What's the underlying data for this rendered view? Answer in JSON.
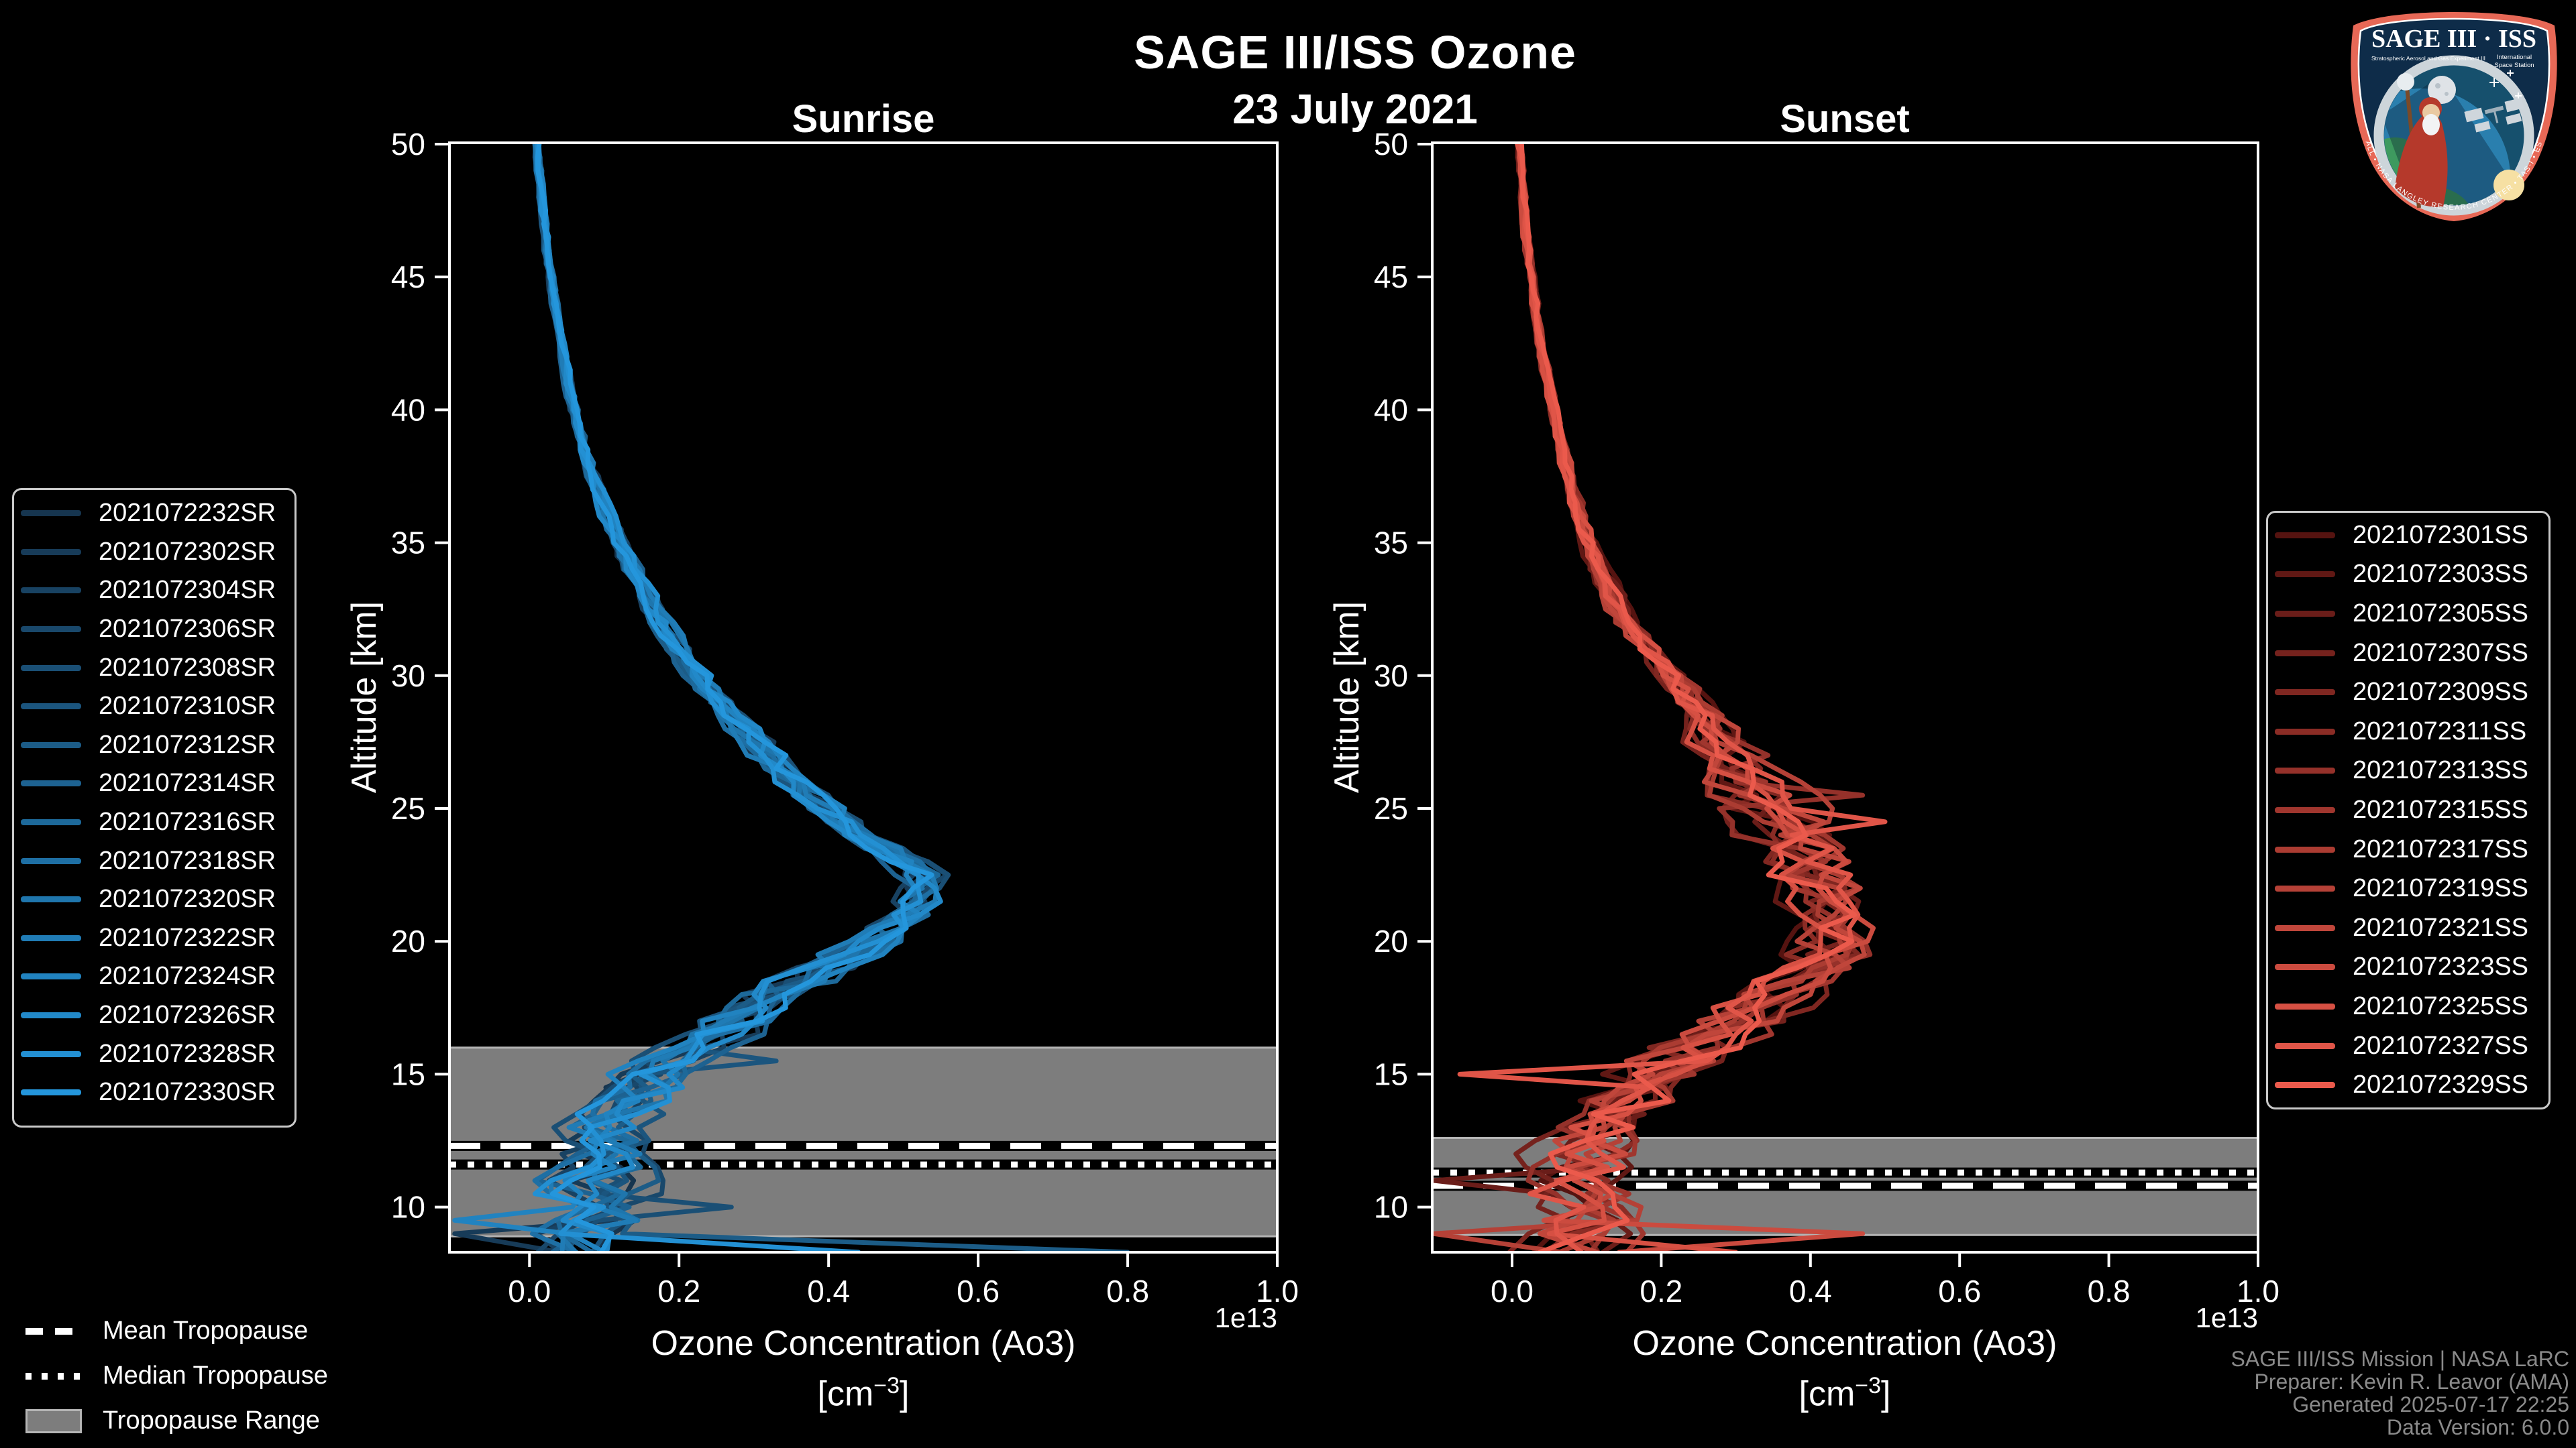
{
  "title": {
    "line1": "SAGE III/ISS Ozone",
    "line2": "23 July 2021"
  },
  "colors": {
    "background": "#000000",
    "text": "#ffffff",
    "muted_text": "#8a8a8a",
    "spine": "#ffffff",
    "band": "#7d7d7d",
    "band_edge": "#b5b5b5",
    "logo_border": "#e76856",
    "logo_field": "#0e2c49"
  },
  "chart_data": [
    {
      "type": "line",
      "id": "sunrise",
      "panel_title": "Sunrise",
      "ylabel": "Altitude [km]",
      "xlabel": "Ozone Concentration (Ao3)",
      "xlabel_unit_pre": "[cm",
      "xlabel_unit_sup": "−3",
      "xlabel_unit_post": "]",
      "offset_text": "1e13",
      "xlim": [
        -0.107,
        1.0
      ],
      "ylim": [
        8.3,
        50.05
      ],
      "xticks": [
        "0.0",
        "0.2",
        "0.4",
        "0.6",
        "0.8",
        "1.0"
      ],
      "xtick_values": [
        0.0,
        0.2,
        0.4,
        0.6,
        0.8,
        1.0
      ],
      "yticks": [
        50,
        45,
        40,
        35,
        30,
        25,
        20,
        15,
        10
      ],
      "grid": false,
      "legend_position": "outside-left",
      "tropopause": {
        "mean_km": 12.3,
        "median_km": 11.6,
        "range_km": [
          8.9,
          16.0
        ]
      },
      "profile_alt_km": [
        50,
        48,
        46,
        44,
        42,
        40,
        38,
        36,
        34,
        32,
        30,
        28,
        26,
        25,
        24,
        23,
        22.5,
        22,
        21,
        20,
        19,
        18,
        17,
        16,
        15,
        14,
        13,
        12,
        11,
        10,
        9.5,
        9,
        8.4
      ],
      "profile_value_1e13": [
        0.01,
        0.016,
        0.024,
        0.034,
        0.046,
        0.06,
        0.08,
        0.105,
        0.135,
        0.175,
        0.225,
        0.285,
        0.355,
        0.395,
        0.445,
        0.505,
        0.525,
        0.52,
        0.505,
        0.47,
        0.395,
        0.325,
        0.265,
        0.225,
        0.165,
        0.13,
        0.11,
        0.095,
        0.085,
        0.09,
        0.085,
        0.07,
        0.07
      ],
      "scatter_amp_alt": [
        50,
        40,
        35,
        30,
        25,
        22,
        20,
        18,
        16,
        14,
        12,
        10,
        9,
        8.3
      ],
      "scatter_amp": [
        0.004,
        0.006,
        0.012,
        0.018,
        0.028,
        0.032,
        0.04,
        0.05,
        0.055,
        0.06,
        0.065,
        0.07,
        0.08,
        0.08
      ],
      "spikes": [
        {
          "series": 6,
          "alt": 8.6,
          "value": 0.8
        },
        {
          "series": 1,
          "alt": 9.1,
          "value": -0.1
        },
        {
          "series": 4,
          "alt": 9.9,
          "value": 0.27
        },
        {
          "series": 12,
          "alt": 9.4,
          "value": -0.1
        },
        {
          "series": 5,
          "alt": 15.3,
          "value": 0.33
        },
        {
          "series": 8,
          "alt": 18.4,
          "value": 0.41
        },
        {
          "series": 14,
          "alt": 8.5,
          "value": 0.44
        }
      ],
      "seed": 11,
      "series": [
        {
          "label": "2021072232SR",
          "color": "#16354F"
        },
        {
          "label": "2021072302SR",
          "color": "#173B58"
        },
        {
          "label": "2021072304SR",
          "color": "#184262"
        },
        {
          "label": "2021072306SR",
          "color": "#19486B"
        },
        {
          "label": "2021072308SR",
          "color": "#1A4F75"
        },
        {
          "label": "2021072310SR",
          "color": "#1B557E"
        },
        {
          "label": "2021072312SR",
          "color": "#1C5C87"
        },
        {
          "label": "2021072314SR",
          "color": "#1D6291"
        },
        {
          "label": "2021072316SR",
          "color": "#1D699A"
        },
        {
          "label": "2021072318SR",
          "color": "#1E6FA4"
        },
        {
          "label": "2021072320SR",
          "color": "#1F76AD"
        },
        {
          "label": "2021072322SR",
          "color": "#207CB6"
        },
        {
          "label": "2021072324SR",
          "color": "#2183C0"
        },
        {
          "label": "2021072326SR",
          "color": "#2289C9"
        },
        {
          "label": "2021072328SR",
          "color": "#2390D3"
        },
        {
          "label": "2021072330SR",
          "color": "#2496DC"
        }
      ]
    },
    {
      "type": "line",
      "id": "sunset",
      "panel_title": "Sunset",
      "ylabel": "Altitude [km]",
      "xlabel": "Ozone Concentration (Ao3)",
      "xlabel_unit_pre": "[cm",
      "xlabel_unit_sup": "−3",
      "xlabel_unit_post": "]",
      "offset_text": "1e13",
      "xlim": [
        -0.107,
        1.0
      ],
      "ylim": [
        8.3,
        50.05
      ],
      "xticks": [
        "0.0",
        "0.2",
        "0.4",
        "0.6",
        "0.8",
        "1.0"
      ],
      "xtick_values": [
        0.0,
        0.2,
        0.4,
        0.6,
        0.8,
        1.0
      ],
      "yticks": [
        50,
        45,
        40,
        35,
        30,
        25,
        20,
        15,
        10
      ],
      "grid": false,
      "legend_position": "outside-right",
      "tropopause": {
        "mean_km": 10.8,
        "median_km": 11.3,
        "range_km": [
          8.95,
          12.6
        ]
      },
      "profile_alt_km": [
        50,
        48,
        46,
        44,
        42,
        40,
        38,
        36,
        34,
        32,
        30,
        28,
        26,
        25,
        24,
        23,
        22,
        21,
        20,
        19,
        18,
        17,
        16,
        15,
        14,
        13,
        12,
        11,
        10,
        9.5,
        9,
        8.4
      ],
      "profile_value_1e13": [
        0.01,
        0.015,
        0.022,
        0.031,
        0.042,
        0.055,
        0.072,
        0.092,
        0.118,
        0.155,
        0.21,
        0.27,
        0.32,
        0.345,
        0.375,
        0.405,
        0.42,
        0.425,
        0.43,
        0.405,
        0.36,
        0.3,
        0.25,
        0.195,
        0.15,
        0.12,
        0.1,
        0.09,
        0.095,
        0.09,
        0.08,
        0.075
      ],
      "scatter_amp_alt": [
        50,
        40,
        35,
        30,
        26,
        24,
        22,
        20,
        18,
        16,
        15,
        13,
        11,
        10,
        9,
        8.3
      ],
      "scatter_amp": [
        0.004,
        0.006,
        0.012,
        0.02,
        0.055,
        0.065,
        0.06,
        0.05,
        0.06,
        0.075,
        0.075,
        0.07,
        0.07,
        0.075,
        0.08,
        0.08
      ],
      "spikes": [
        {
          "series": 11,
          "alt": 8.8,
          "value": 0.47
        },
        {
          "series": 2,
          "alt": 10.9,
          "value": -0.105
        },
        {
          "series": 13,
          "alt": 15.0,
          "value": -0.07
        },
        {
          "series": 9,
          "alt": 9.2,
          "value": -0.105
        },
        {
          "series": 13,
          "alt": 24.5,
          "value": 0.5
        },
        {
          "series": 6,
          "alt": 25.5,
          "value": 0.47
        },
        {
          "series": 12,
          "alt": 8.5,
          "value": 0.3
        }
      ],
      "seed": 23,
      "series": [
        {
          "label": "2021072301SS",
          "color": "#551310"
        },
        {
          "label": "2021072303SS",
          "color": "#601814"
        },
        {
          "label": "2021072305SS",
          "color": "#6A1D19"
        },
        {
          "label": "2021072307SS",
          "color": "#75221D"
        },
        {
          "label": "2021072309SS",
          "color": "#802721"
        },
        {
          "label": "2021072311SS",
          "color": "#8B2C25"
        },
        {
          "label": "2021072313SS",
          "color": "#95312A"
        },
        {
          "label": "2021072315SS",
          "color": "#A0362E"
        },
        {
          "label": "2021072317SS",
          "color": "#AB3C32"
        },
        {
          "label": "2021072319SS",
          "color": "#B54137"
        },
        {
          "label": "2021072321SS",
          "color": "#C0463B"
        },
        {
          "label": "2021072323SS",
          "color": "#CB4B3F"
        },
        {
          "label": "2021072325SS",
          "color": "#D65043"
        },
        {
          "label": "2021072327SS",
          "color": "#E05548"
        },
        {
          "label": "2021072329SS",
          "color": "#EB5A4C"
        }
      ]
    }
  ],
  "tropopause_legend": {
    "mean": "Mean Tropopause",
    "median": "Median Tropopause",
    "range": "Tropopause Range"
  },
  "attribution": {
    "line1": "SAGE III/ISS Mission | NASA LaRC",
    "line2": "Preparer: Kevin R. Leavor (AMA)",
    "line3": "Generated 2025-07-17 22:25",
    "line4": "Data Version: 6.0.0"
  },
  "logo": {
    "title": "SAGE III · ISS",
    "subtitle_left": "Stratospheric Aerosol and Gas Experiment III",
    "subtitle_right_1": "International",
    "subtitle_right_2": "Space Station",
    "border_text": "BALL • NASA LANGLEY RESEARCH CENTER • TAS-I • ESA"
  }
}
